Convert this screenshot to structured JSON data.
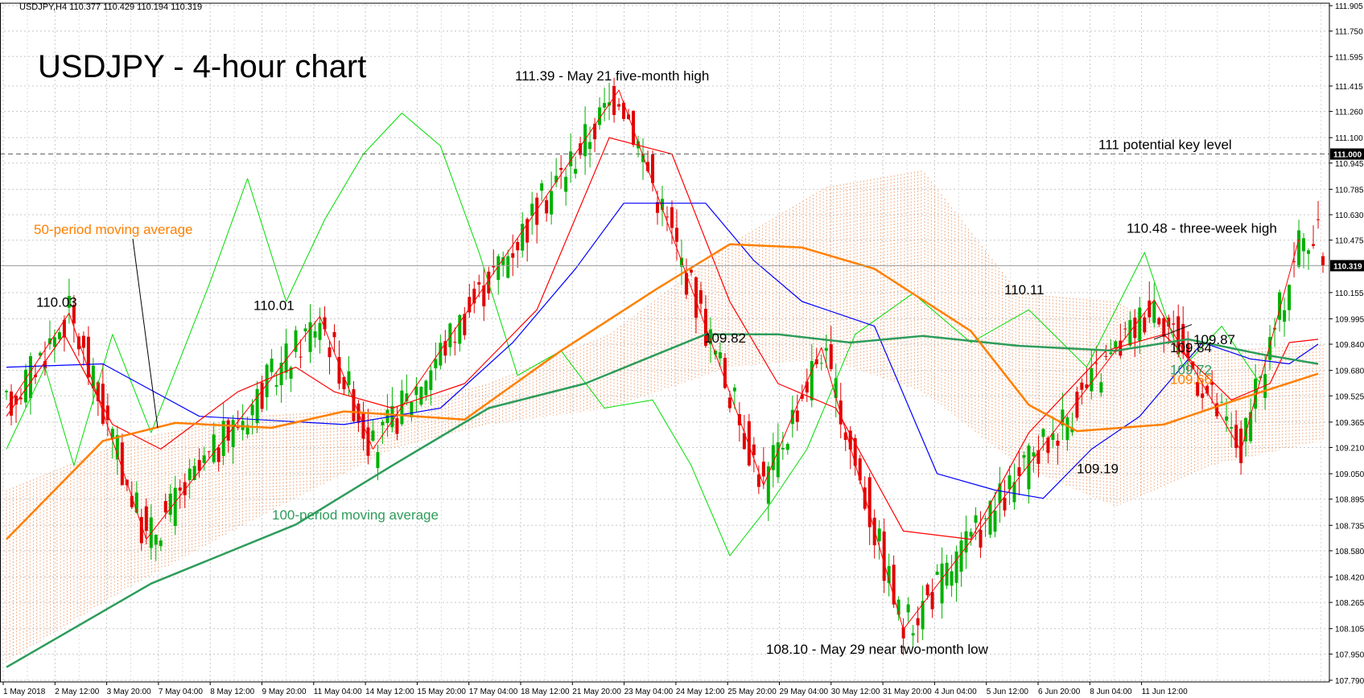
{
  "header": {
    "symbol_line": "USDJPY,H4  110.377 110.429 110.194 110.319"
  },
  "chart_data": {
    "type": "candlestick",
    "title": "USDJPY - 4-hour chart",
    "symbol": "USDJPY",
    "timeframe": "H4",
    "ohlc_header": {
      "open": 110.377,
      "high": 110.429,
      "low": 110.194,
      "close": 110.319
    },
    "current_price": 110.319,
    "ylim": [
      107.78,
      111.92
    ],
    "y_ticks": [
      "111.905",
      "111.750",
      "111.595",
      "111.415",
      "111.260",
      "111.100",
      "110.945",
      "110.785",
      "110.630",
      "110.475",
      "110.155",
      "109.995",
      "109.840",
      "109.680",
      "109.525",
      "109.365",
      "109.210",
      "109.050",
      "108.895",
      "108.735",
      "108.580",
      "108.420",
      "108.265",
      "108.105",
      "107.950",
      "107.790"
    ],
    "x_ticks": [
      "1 May 2018",
      "2 May 12:00",
      "3 May 20:00",
      "7 May 04:00",
      "8 May 12:00",
      "9 May 20:00",
      "11 May 04:00",
      "14 May 12:00",
      "15 May 20:00",
      "17 May 04:00",
      "18 May 12:00",
      "21 May 20:00",
      "23 May 04:00",
      "24 May 12:00",
      "25 May 20:00",
      "29 May 04:00",
      "30 May 12:00",
      "31 May 20:00",
      "4 Jun 04:00",
      "5 Jun 12:00",
      "6 Jun 20:00",
      "8 Jun 04:00",
      "11 Jun 12:00"
    ],
    "grid": true,
    "indicators": [
      "50-period moving average",
      "100-period moving average",
      "Ichimoku cloud",
      "Tenkan-sen",
      "Kijun-sen",
      "Chikou span"
    ],
    "horizontal_line": {
      "value": 111.0,
      "label": "111 potential key level"
    },
    "price_tags": [
      {
        "value": 111.0,
        "text": "111.000"
      },
      {
        "value": 110.319,
        "text": "110.319"
      }
    ],
    "annotations": [
      {
        "text": "110.03",
        "price": 110.03
      },
      {
        "text": "110.01",
        "price": 110.01
      },
      {
        "text": "111.39 - May 21 five-month high",
        "price": 111.39
      },
      {
        "text": "109.82",
        "price": 109.82
      },
      {
        "text": "108.10 - May 29 near two-month low",
        "price": 108.1
      },
      {
        "text": "110.11",
        "price": 110.11
      },
      {
        "text": "109.19",
        "price": 109.19
      },
      {
        "text": "110.48 - three-week high",
        "price": 110.48
      },
      {
        "text": "109.87",
        "price": 109.87
      },
      {
        "text": "109.84",
        "price": 109.84
      },
      {
        "text": "109.72",
        "price": 109.72
      },
      {
        "text": "109.66",
        "price": 109.66
      }
    ],
    "legend_labels": {
      "ma50": "50-period moving average",
      "ma100": "100-period moving average"
    },
    "colors": {
      "bull": "#00b000",
      "bear": "#e00000",
      "ma50": "#ff8000",
      "ma100": "#2e9c5a",
      "tenkan": "#ff0000",
      "kijun": "#0000ff",
      "chikou": "#00dd00",
      "cloud": "#f0a070",
      "zigzag": "#ff0000",
      "grid": "#c8c8c8",
      "level_line": "#666666"
    },
    "zigzag_points": [
      {
        "bar": 0,
        "price": 109.45
      },
      {
        "bar": 13,
        "price": 110.03
      },
      {
        "bar": 29,
        "price": 108.65
      },
      {
        "bar": 65,
        "price": 110.01
      },
      {
        "bar": 76,
        "price": 109.2
      },
      {
        "bar": 127,
        "price": 111.39
      },
      {
        "bar": 157,
        "price": 108.98
      },
      {
        "bar": 169,
        "price": 109.82
      },
      {
        "bar": 186,
        "price": 108.1
      },
      {
        "bar": 238,
        "price": 110.11
      },
      {
        "bar": 256,
        "price": 109.19
      },
      {
        "bar": 268,
        "price": 110.48
      }
    ],
    "ma50_points": [
      {
        "bar": 0,
        "price": 108.65
      },
      {
        "bar": 20,
        "price": 109.25
      },
      {
        "bar": 35,
        "price": 109.36
      },
      {
        "bar": 55,
        "price": 109.33
      },
      {
        "bar": 70,
        "price": 109.43
      },
      {
        "bar": 95,
        "price": 109.38
      },
      {
        "bar": 115,
        "price": 109.8
      },
      {
        "bar": 135,
        "price": 110.18
      },
      {
        "bar": 150,
        "price": 110.45
      },
      {
        "bar": 165,
        "price": 110.43
      },
      {
        "bar": 180,
        "price": 110.3
      },
      {
        "bar": 200,
        "price": 109.92
      },
      {
        "bar": 212,
        "price": 109.47
      },
      {
        "bar": 222,
        "price": 109.31
      },
      {
        "bar": 240,
        "price": 109.35
      },
      {
        "bar": 255,
        "price": 109.5
      },
      {
        "bar": 272,
        "price": 109.66
      }
    ],
    "ma100_points": [
      {
        "bar": 0,
        "price": 107.87
      },
      {
        "bar": 30,
        "price": 108.38
      },
      {
        "bar": 60,
        "price": 108.74
      },
      {
        "bar": 80,
        "price": 109.1
      },
      {
        "bar": 100,
        "price": 109.45
      },
      {
        "bar": 120,
        "price": 109.6
      },
      {
        "bar": 145,
        "price": 109.9
      },
      {
        "bar": 160,
        "price": 109.9
      },
      {
        "bar": 175,
        "price": 109.85
      },
      {
        "bar": 190,
        "price": 109.89
      },
      {
        "bar": 210,
        "price": 109.83
      },
      {
        "bar": 230,
        "price": 109.8
      },
      {
        "bar": 245,
        "price": 109.87
      },
      {
        "bar": 260,
        "price": 109.78
      },
      {
        "bar": 272,
        "price": 109.72
      }
    ],
    "tenkan_points": [
      {
        "bar": 0,
        "price": 109.4
      },
      {
        "bar": 12,
        "price": 109.9
      },
      {
        "bar": 22,
        "price": 109.35
      },
      {
        "bar": 32,
        "price": 109.2
      },
      {
        "bar": 48,
        "price": 109.55
      },
      {
        "bar": 60,
        "price": 109.7
      },
      {
        "bar": 68,
        "price": 109.55
      },
      {
        "bar": 80,
        "price": 109.45
      },
      {
        "bar": 95,
        "price": 109.6
      },
      {
        "bar": 110,
        "price": 110.05
      },
      {
        "bar": 125,
        "price": 111.1
      },
      {
        "bar": 138,
        "price": 111.0
      },
      {
        "bar": 150,
        "price": 110.1
      },
      {
        "bar": 160,
        "price": 109.6
      },
      {
        "bar": 172,
        "price": 109.45
      },
      {
        "bar": 186,
        "price": 108.7
      },
      {
        "bar": 200,
        "price": 108.65
      },
      {
        "bar": 212,
        "price": 109.3
      },
      {
        "bar": 228,
        "price": 109.8
      },
      {
        "bar": 240,
        "price": 109.9
      },
      {
        "bar": 254,
        "price": 109.5
      },
      {
        "bar": 262,
        "price": 109.6
      },
      {
        "bar": 266,
        "price": 109.85
      },
      {
        "bar": 272,
        "price": 109.87
      }
    ],
    "kijun_points": [
      {
        "bar": 0,
        "price": 109.7
      },
      {
        "bar": 20,
        "price": 109.72
      },
      {
        "bar": 40,
        "price": 109.4
      },
      {
        "bar": 70,
        "price": 109.35
      },
      {
        "bar": 90,
        "price": 109.45
      },
      {
        "bar": 105,
        "price": 109.85
      },
      {
        "bar": 118,
        "price": 110.3
      },
      {
        "bar": 128,
        "price": 110.7
      },
      {
        "bar": 145,
        "price": 110.7
      },
      {
        "bar": 155,
        "price": 110.35
      },
      {
        "bar": 165,
        "price": 110.1
      },
      {
        "bar": 180,
        "price": 109.95
      },
      {
        "bar": 193,
        "price": 109.05
      },
      {
        "bar": 205,
        "price": 108.95
      },
      {
        "bar": 215,
        "price": 108.9
      },
      {
        "bar": 225,
        "price": 109.2
      },
      {
        "bar": 235,
        "price": 109.4
      },
      {
        "bar": 248,
        "price": 109.85
      },
      {
        "bar": 258,
        "price": 109.75
      },
      {
        "bar": 266,
        "price": 109.72
      },
      {
        "bar": 272,
        "price": 109.84
      }
    ],
    "chikou_points": [
      {
        "bar": 0,
        "price": 109.2
      },
      {
        "bar": 8,
        "price": 109.7
      },
      {
        "bar": 14,
        "price": 109.1
      },
      {
        "bar": 22,
        "price": 109.9
      },
      {
        "bar": 30,
        "price": 109.3
      },
      {
        "bar": 42,
        "price": 110.2
      },
      {
        "bar": 50,
        "price": 110.85
      },
      {
        "bar": 58,
        "price": 110.1
      },
      {
        "bar": 66,
        "price": 110.6
      },
      {
        "bar": 74,
        "price": 111.0
      },
      {
        "bar": 82,
        "price": 111.25
      },
      {
        "bar": 90,
        "price": 111.05
      },
      {
        "bar": 98,
        "price": 110.4
      },
      {
        "bar": 106,
        "price": 109.65
      },
      {
        "bar": 115,
        "price": 109.8
      },
      {
        "bar": 124,
        "price": 109.45
      },
      {
        "bar": 134,
        "price": 109.5
      },
      {
        "bar": 142,
        "price": 109.1
      },
      {
        "bar": 150,
        "price": 108.55
      },
      {
        "bar": 158,
        "price": 108.85
      },
      {
        "bar": 166,
        "price": 109.2
      },
      {
        "bar": 176,
        "price": 109.9
      },
      {
        "bar": 188,
        "price": 110.15
      },
      {
        "bar": 200,
        "price": 109.85
      },
      {
        "bar": 212,
        "price": 110.05
      },
      {
        "bar": 224,
        "price": 109.7
      },
      {
        "bar": 236,
        "price": 110.4
      },
      {
        "bar": 244,
        "price": 109.7
      },
      {
        "bar": 252,
        "price": 109.95
      },
      {
        "bar": 260,
        "price": 109.6
      }
    ],
    "cloud_top_points": [
      {
        "bar": 0,
        "price": 108.95
      },
      {
        "bar": 25,
        "price": 109.25
      },
      {
        "bar": 50,
        "price": 109.4
      },
      {
        "bar": 80,
        "price": 109.45
      },
      {
        "bar": 100,
        "price": 109.6
      },
      {
        "bar": 125,
        "price": 109.9
      },
      {
        "bar": 150,
        "price": 110.45
      },
      {
        "bar": 170,
        "price": 110.8
      },
      {
        "bar": 190,
        "price": 110.9
      },
      {
        "bar": 210,
        "price": 110.15
      },
      {
        "bar": 230,
        "price": 110.1
      },
      {
        "bar": 250,
        "price": 109.8
      },
      {
        "bar": 280,
        "price": 109.85
      },
      {
        "bar": 300,
        "price": 109.92
      }
    ],
    "cloud_bottom_points": [
      {
        "bar": 0,
        "price": 107.9
      },
      {
        "bar": 25,
        "price": 108.35
      },
      {
        "bar": 50,
        "price": 108.75
      },
      {
        "bar": 80,
        "price": 109.2
      },
      {
        "bar": 100,
        "price": 109.35
      },
      {
        "bar": 125,
        "price": 109.45
      },
      {
        "bar": 150,
        "price": 109.7
      },
      {
        "bar": 170,
        "price": 109.75
      },
      {
        "bar": 190,
        "price": 109.55
      },
      {
        "bar": 210,
        "price": 109.1
      },
      {
        "bar": 230,
        "price": 108.85
      },
      {
        "bar": 250,
        "price": 109.1
      },
      {
        "bar": 280,
        "price": 109.3
      },
      {
        "bar": 300,
        "price": 109.4
      }
    ]
  }
}
